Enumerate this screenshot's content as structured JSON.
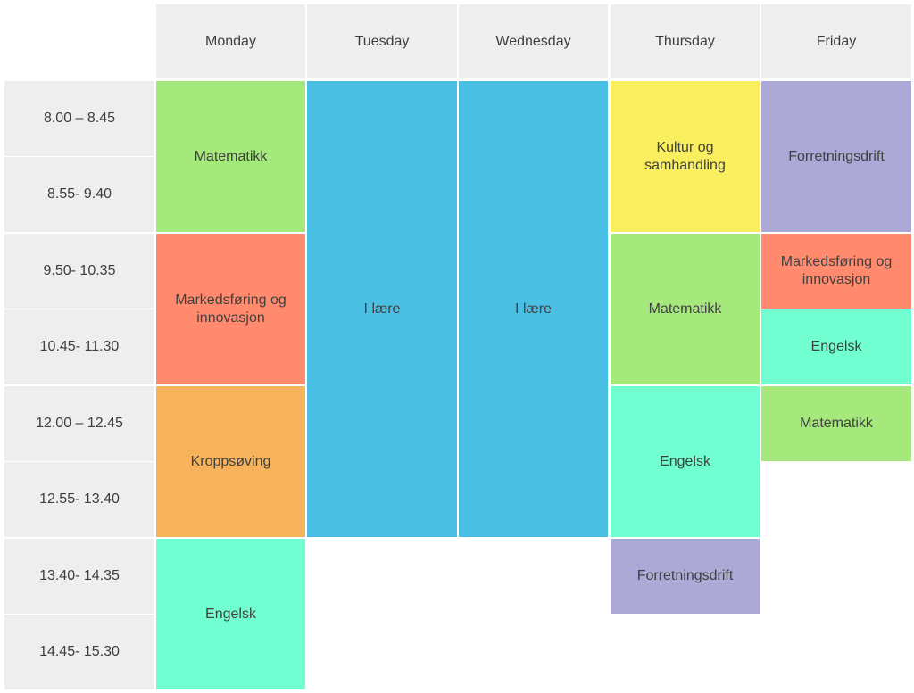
{
  "colors": {
    "matematikk": "#a5e97d",
    "markedsforing": "#ff8a6e",
    "kroppsoving": "#f7b35c",
    "engelsk": "#71ffd2",
    "i_laere": "#49bfe4",
    "kultur": "#f8ee5e",
    "forretningsdrift": "#aca9d6",
    "header_bg": "#eeeeee"
  },
  "days": {
    "monday": "Monday",
    "tuesday": "Tuesday",
    "wednesday": "Wednesday",
    "thursday": "Thursday",
    "friday": "Friday"
  },
  "times": [
    "8.00 – 8.45",
    "8.55- 9.40",
    "9.50- 10.35",
    "10.45- 11.30",
    "12.00 – 12.45",
    "12.55- 13.40",
    "13.40- 14.35",
    "14.45- 15.30"
  ],
  "schedule": {
    "monday": [
      "Matematikk",
      "Markedsføring og innovasjon",
      "Kroppsøving",
      "Engelsk"
    ],
    "tuesday": [
      "I lære"
    ],
    "wednesday": [
      "I lære"
    ],
    "thursday": [
      "Kultur og samhandling",
      "Matematikk",
      "Engelsk",
      "Forretningsdrift"
    ],
    "friday": [
      "Forretningsdrift",
      "Markedsføring og innovasjon",
      "Engelsk",
      "Matematikk"
    ]
  }
}
